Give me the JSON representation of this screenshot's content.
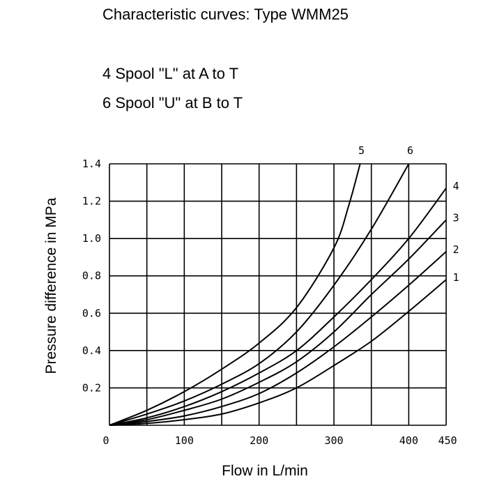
{
  "header": {
    "title": "Characteristic curves: Type WMM25",
    "line1": "4 Spool \"L\" at  A to T",
    "line2": "6 Spool \"U\" at  B to T"
  },
  "chart_data": {
    "type": "line",
    "xlabel": "Flow in L/min",
    "ylabel": "Pressure difference in MPa",
    "xlim": [
      0,
      450
    ],
    "ylim": [
      0,
      1.4
    ],
    "grid": true,
    "x_ticks": [
      {
        "value": 0,
        "label": "0"
      },
      {
        "value": 100,
        "label": "100"
      },
      {
        "value": 200,
        "label": "200"
      },
      {
        "value": 300,
        "label": "300"
      },
      {
        "value": 400,
        "label": "400"
      },
      {
        "value": 450,
        "label": "450"
      }
    ],
    "y_ticks": [
      {
        "value": 0.2,
        "label": "0.2"
      },
      {
        "value": 0.4,
        "label": "0.4"
      },
      {
        "value": 0.6,
        "label": "0.6"
      },
      {
        "value": 0.8,
        "label": "0.8"
      },
      {
        "value": 1.0,
        "label": "1.0"
      },
      {
        "value": 1.2,
        "label": "1.2"
      },
      {
        "value": 1.4,
        "label": "1.4"
      }
    ],
    "series": [
      {
        "name": "1",
        "x": [
          0,
          50,
          100,
          150,
          200,
          250,
          300,
          350,
          400,
          450
        ],
        "y": [
          0,
          0.01,
          0.03,
          0.06,
          0.12,
          0.2,
          0.32,
          0.45,
          0.61,
          0.78
        ]
      },
      {
        "name": "2",
        "x": [
          0,
          50,
          100,
          150,
          200,
          250,
          300,
          350,
          400,
          450
        ],
        "y": [
          0,
          0.02,
          0.05,
          0.1,
          0.17,
          0.28,
          0.42,
          0.58,
          0.75,
          0.93
        ]
      },
      {
        "name": "3",
        "x": [
          0,
          50,
          100,
          150,
          200,
          250,
          300,
          350,
          400,
          450
        ],
        "y": [
          0,
          0.03,
          0.08,
          0.14,
          0.23,
          0.34,
          0.5,
          0.7,
          0.89,
          1.1
        ]
      },
      {
        "name": "4",
        "x": [
          0,
          50,
          100,
          150,
          200,
          250,
          300,
          350,
          400,
          450
        ],
        "y": [
          0,
          0.04,
          0.1,
          0.18,
          0.28,
          0.4,
          0.58,
          0.78,
          1.0,
          1.27
        ]
      },
      {
        "name": "5",
        "x": [
          0,
          50,
          100,
          150,
          200,
          250,
          300,
          320,
          335
        ],
        "y": [
          0,
          0.08,
          0.18,
          0.3,
          0.44,
          0.63,
          0.95,
          1.18,
          1.4
        ]
      },
      {
        "name": "6",
        "x": [
          0,
          50,
          100,
          150,
          200,
          250,
          300,
          350,
          400
        ],
        "y": [
          0,
          0.06,
          0.13,
          0.22,
          0.33,
          0.5,
          0.75,
          1.05,
          1.4
        ]
      }
    ]
  }
}
